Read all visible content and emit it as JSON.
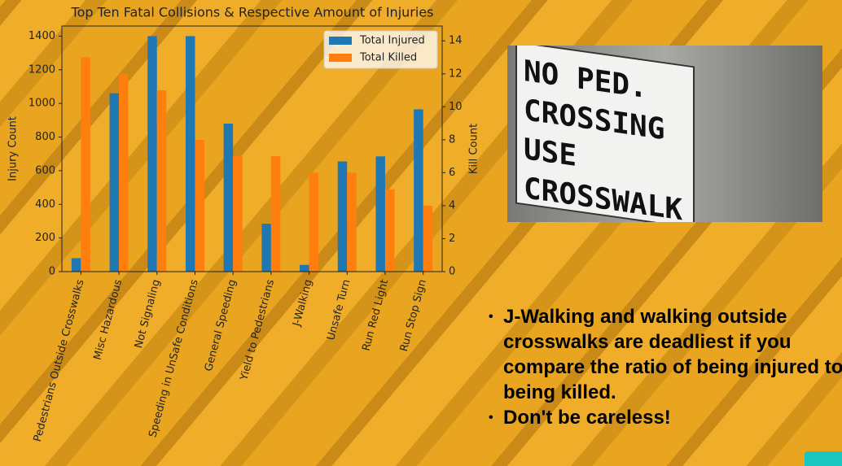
{
  "chart_data": {
    "type": "bar",
    "title": "Top Ten Fatal Collisions & Respective Amount of Injuries",
    "ylabel": "Injury Count",
    "y2label": "Kill Count",
    "categories": [
      "Pedestrians Outside Crosswalks",
      "Misc Hazardous",
      "Not Signaling",
      "Speeding in UnSafe Conditions",
      "General Speeding",
      "Yield to Pedestrians",
      "J-Walking",
      "Unsafe Turn",
      "Run Red Light",
      "Run Stop Sign"
    ],
    "series": [
      {
        "name": "Total Injured",
        "color": "#1f77b4",
        "values": [
          80,
          1060,
          1400,
          1400,
          880,
          285,
          40,
          655,
          685,
          965
        ]
      },
      {
        "name": "Total Killed",
        "color": "#ff7f0e",
        "axis": "y2",
        "values": [
          13,
          12,
          11,
          8,
          7,
          7,
          6,
          6,
          5,
          4
        ]
      }
    ],
    "ylim": [
      0,
      1460
    ],
    "yticks": [
      0,
      200,
      400,
      600,
      800,
      1000,
      1200,
      1400
    ],
    "y2lim": [
      0,
      14.9
    ],
    "y2ticks": [
      0,
      2,
      4,
      6,
      8,
      10,
      12,
      14
    ],
    "legend": "upper right"
  },
  "photo": {
    "sign_lines": [
      "NO PED. CROSSING",
      "USE CROSSWALK"
    ]
  },
  "bullets": [
    "J-Walking and walking outside crosswalks are deadliest if you compare the ratio of being injured to being killed.",
    "Don't be careless!"
  ]
}
